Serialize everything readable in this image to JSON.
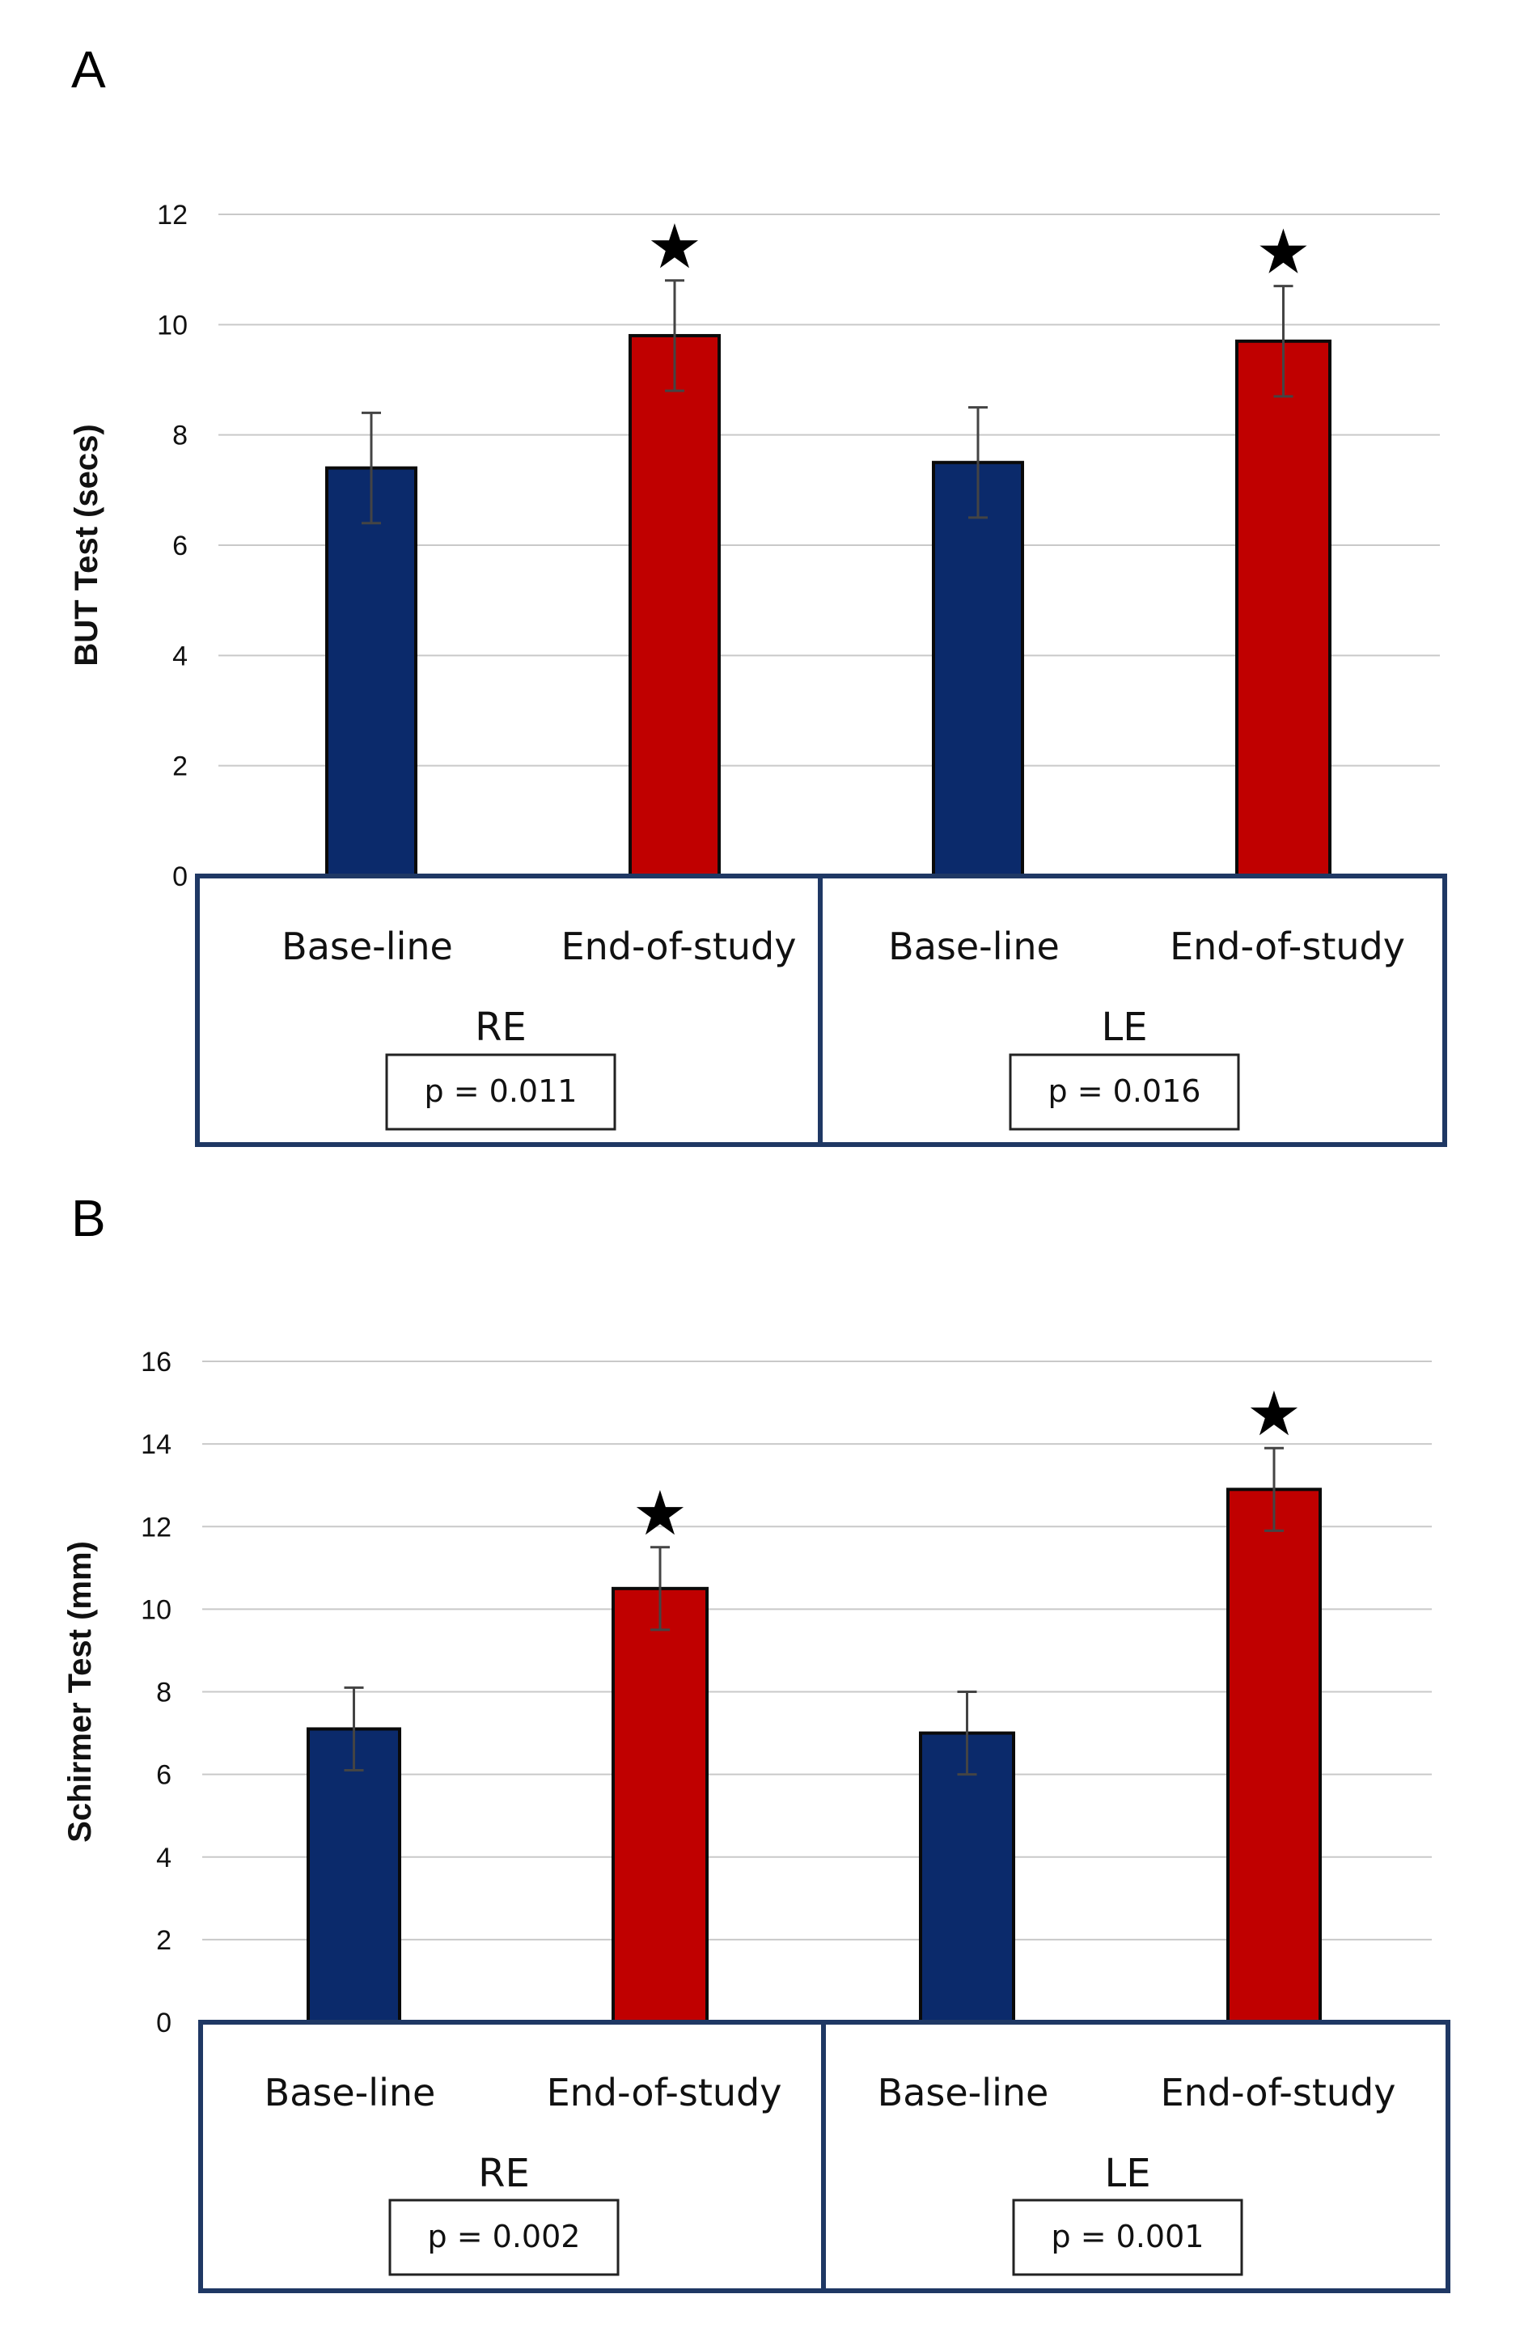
{
  "colors": {
    "baseline": "#0b2a6b",
    "end": "#c00000",
    "frame": "#1f3864",
    "grid": "#c9c9c9"
  },
  "chart_data": [
    {
      "panel_label": "A",
      "type": "bar",
      "ylabel": "BUT Test (secs)",
      "ylim": [
        0,
        12
      ],
      "yticks": [
        "0",
        "2",
        "4",
        "6",
        "8",
        "10",
        "12"
      ],
      "groups": [
        {
          "label": "RE",
          "p_value": "p = 0.011",
          "bars": [
            {
              "category": "Base-line",
              "value": 7.4,
              "error": 1.0,
              "star": ""
            },
            {
              "category": "End-of-study",
              "value": 9.8,
              "error": 1.0,
              "star": "★"
            }
          ]
        },
        {
          "label": "LE",
          "p_value": "p = 0.016",
          "bars": [
            {
              "category": "Base-line",
              "value": 7.5,
              "error": 1.0,
              "star": ""
            },
            {
              "category": "End-of-study",
              "value": 9.7,
              "error": 1.0,
              "star": "★"
            }
          ]
        }
      ]
    },
    {
      "panel_label": "B",
      "type": "bar",
      "ylabel": "Schirmer Test (mm)",
      "ylim": [
        0,
        16
      ],
      "yticks": [
        "0",
        "2",
        "4",
        "6",
        "8",
        "10",
        "12",
        "14",
        "16"
      ],
      "groups": [
        {
          "label": "RE",
          "p_value": "p = 0.002",
          "bars": [
            {
              "category": "Base-line",
              "value": 7.1,
              "error": 1.0,
              "star": ""
            },
            {
              "category": "End-of-study",
              "value": 10.5,
              "error": 1.0,
              "star": "★"
            }
          ]
        },
        {
          "label": "LE",
          "p_value": "p = 0.001",
          "bars": [
            {
              "category": "Base-line",
              "value": 7.0,
              "error": 1.0,
              "star": ""
            },
            {
              "category": "End-of-study",
              "value": 12.9,
              "error": 1.0,
              "star": "★"
            }
          ]
        }
      ]
    }
  ]
}
